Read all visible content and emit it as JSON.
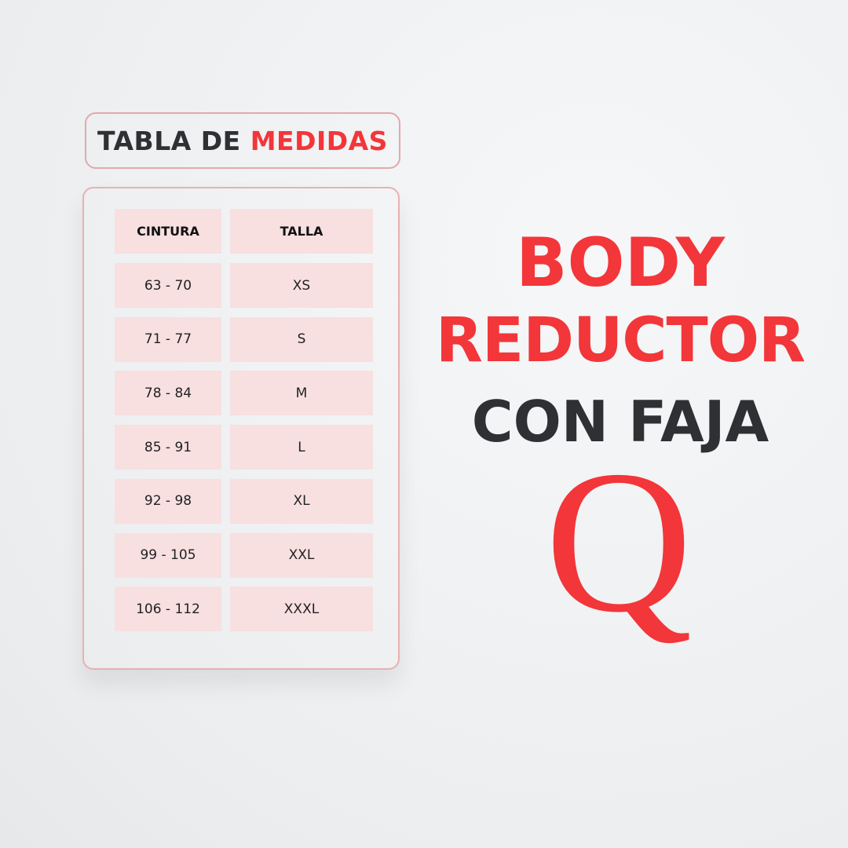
{
  "header": {
    "title_part1": "TABLA DE",
    "title_part2": "MEDIDAS"
  },
  "table": {
    "columns": [
      "CINTURA",
      "TALLA"
    ],
    "rows": [
      [
        "63 - 70",
        "XS"
      ],
      [
        "71 - 77",
        "S"
      ],
      [
        "78 - 84",
        "M"
      ],
      [
        "85 - 91",
        "L"
      ],
      [
        "92 - 98",
        "XL"
      ],
      [
        "99 - 105",
        "XXL"
      ],
      [
        "106 - 112",
        "XXXL"
      ]
    ]
  },
  "product": {
    "line1": "BODY",
    "line2": "REDUCTOR",
    "line3": "CON FAJA"
  },
  "logo": {
    "letter": "Q"
  },
  "colors": {
    "accent": "#f2363a",
    "dark": "#2e3033",
    "cell": "#f8dfe0",
    "border": "#e2a9ab"
  }
}
